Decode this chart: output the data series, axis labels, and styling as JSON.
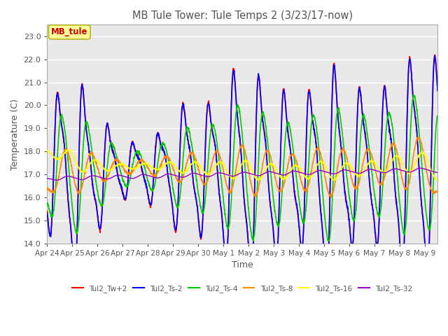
{
  "title": "MB Tule Tower: Tule Temps 2 (3/23/17-now)",
  "xlabel": "Time",
  "ylabel": "Temperature (C)",
  "ylim": [
    14.0,
    23.5
  ],
  "yticks": [
    14.0,
    15.0,
    16.0,
    17.0,
    18.0,
    19.0,
    20.0,
    21.0,
    22.0,
    23.0
  ],
  "xlim": [
    0,
    15.5
  ],
  "xtick_labels": [
    "Apr 24",
    "Apr 25",
    "Apr 26",
    "Apr 27",
    "Apr 28",
    "Apr 29",
    "Apr 30",
    "May 1",
    "May 2",
    "May 3",
    "May 4",
    "May 5",
    "May 6",
    "May 7",
    "May 8",
    "May 9"
  ],
  "xtick_positions": [
    0,
    1,
    2,
    3,
    4,
    5,
    6,
    7,
    8,
    9,
    10,
    11,
    12,
    13,
    14,
    15
  ],
  "series": [
    {
      "label": "Tul2_Tw+2",
      "color": "#ff0000"
    },
    {
      "label": "Tul2_Ts-2",
      "color": "#0000ff"
    },
    {
      "label": "Tul2_Ts-4",
      "color": "#00cc00"
    },
    {
      "label": "Tul2_Ts-8",
      "color": "#ff8800"
    },
    {
      "label": "Tul2_Ts-16",
      "color": "#ffff00"
    },
    {
      "label": "Tul2_Ts-32",
      "color": "#9900cc"
    }
  ],
  "background_color": "#ffffff",
  "plot_bg_color": "#e8e8e8",
  "grid_color": "#ffffff",
  "title_color": "#555555",
  "annotation_text": "MB_tule",
  "annotation_color": "#cc0000",
  "annotation_box_color": "#ffff99"
}
